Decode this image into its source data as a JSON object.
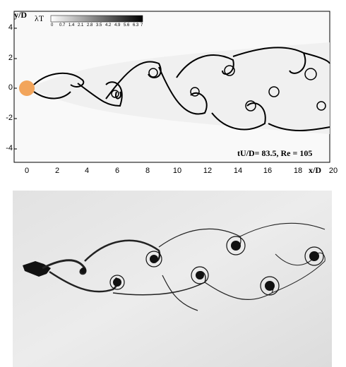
{
  "top_figure": {
    "y_axis_label": "y/D",
    "x_axis_label": "x/D",
    "colorbar_title": "λT",
    "colorbar_ticks": [
      "0",
      "0.7",
      "1.4",
      "2.1",
      "2.8",
      "3.5",
      "4.2",
      "4.9",
      "5.6",
      "6.3",
      "7"
    ],
    "annotation": "tU/D= 83.5, Re = 105",
    "y_ticks": [
      "4",
      "2",
      "0",
      "-2",
      "-4"
    ],
    "x_ticks": [
      "0",
      "2",
      "4",
      "6",
      "8",
      "10",
      "12",
      "14",
      "16",
      "18",
      "20"
    ],
    "cylinder_color": "#f2a55c"
  }
}
